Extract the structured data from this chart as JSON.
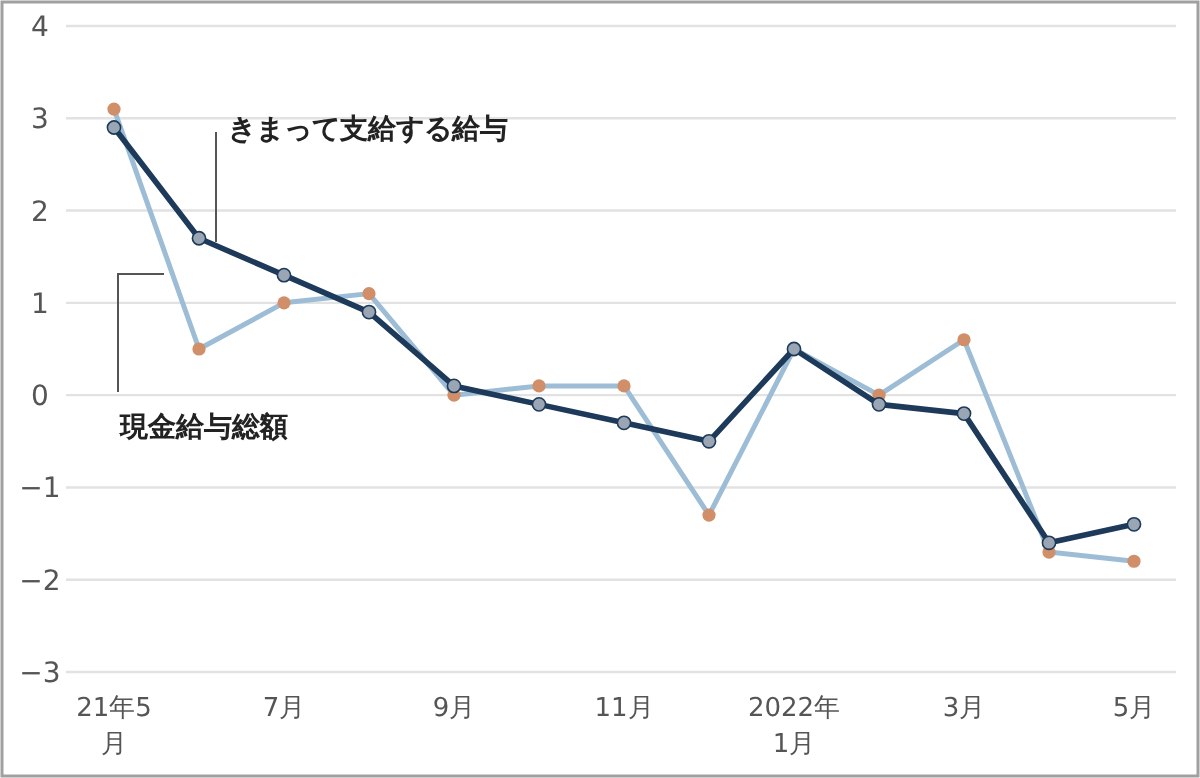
{
  "chart_data": {
    "type": "line",
    "categories": [
      "21年5\n月",
      null,
      "7月",
      null,
      "9月",
      null,
      "11月",
      null,
      "2022年\n1月",
      null,
      "3月",
      null,
      "5月"
    ],
    "series": [
      {
        "name": "現金給与総額",
        "color": "#9dbdd6",
        "colors": [
          "#d08f68",
          "#d08f68",
          "#d08f68",
          "#d08f68",
          "#d08f68",
          "#d08f68",
          "#d08f68",
          "#d08f68",
          "#d08f68",
          "#d08f68",
          "#d08f68",
          "#d08f68",
          "#d08f68"
        ],
        "values": [
          3.1,
          0.5,
          1.0,
          1.1,
          0.0,
          0.1,
          0.1,
          -1.3,
          0.5,
          0.0,
          0.6,
          -1.7,
          -1.8
        ]
      },
      {
        "name": "きまって支給する給与",
        "color": "#1d3a5a",
        "colors": [
          "#9aa6b4",
          "#9aa6b4",
          "#9aa6b4",
          "#9aa6b4",
          "#9aa6b4",
          "#9aa6b4",
          "#9aa6b4",
          "#9aa6b4",
          "#9aa6b4",
          "#9aa6b4",
          "#9aa6b4",
          "#9aa6b4",
          "#9aa6b4"
        ],
        "values": [
          2.9,
          1.7,
          1.3,
          0.9,
          0.1,
          -0.1,
          -0.3,
          -0.5,
          0.5,
          -0.1,
          -0.2,
          -1.6,
          -1.4
        ]
      }
    ],
    "ylim": [
      -3,
      4
    ],
    "yticks": [
      -3,
      -2,
      -1,
      0,
      1,
      2,
      3,
      4
    ],
    "grid": "y",
    "marker": "circle",
    "legend": false
  }
}
